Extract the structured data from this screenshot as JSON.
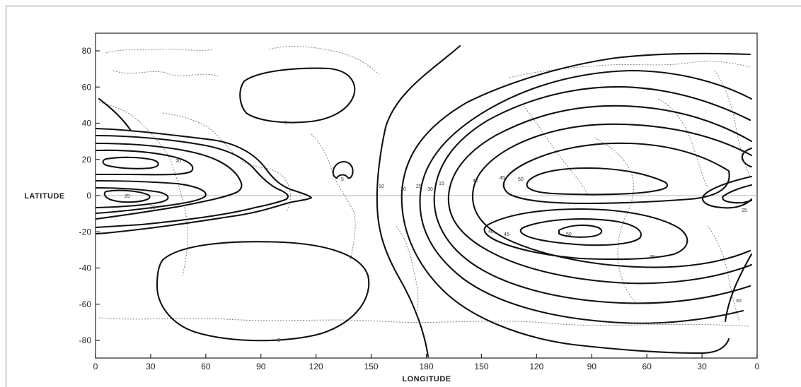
{
  "chart_data": {
    "type": "contour-map",
    "xlabel": "LONGITUDE",
    "ylabel": "LATITUDE",
    "x_ticks": [
      "0",
      "30",
      "60",
      "90",
      "120",
      "150",
      "180",
      "150",
      "120",
      "90",
      "60",
      "30",
      "0"
    ],
    "y_ticks": [
      "80",
      "60",
      "40",
      "20",
      "0",
      "-20",
      "-40",
      "-60",
      "-80"
    ],
    "contour_labels": [
      "5",
      "5",
      "5",
      "10",
      "20",
      "25",
      "30",
      "15",
      "20",
      "25",
      "35",
      "40",
      "45",
      "50",
      "50",
      "45",
      "40",
      "35",
      "30",
      "25"
    ],
    "grid": false,
    "legend": "none"
  }
}
